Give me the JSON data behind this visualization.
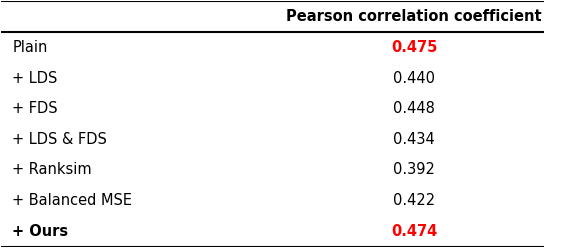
{
  "header": [
    "",
    "Pearson correlation coefficient"
  ],
  "rows": [
    [
      "Plain",
      "0.475"
    ],
    [
      "+ LDS",
      "0.440"
    ],
    [
      "+ FDS",
      "0.448"
    ],
    [
      "+ LDS & FDS",
      "0.434"
    ],
    [
      "+ Ranksim",
      "0.392"
    ],
    [
      "+ Balanced MSE",
      "0.422"
    ],
    [
      "+ Ours",
      "0.474"
    ]
  ],
  "red_rows": [
    0,
    6
  ],
  "bold_method_rows": [
    6
  ],
  "bg_color": "#ffffff",
  "text_color": "#000000",
  "red_color": "#ff0000",
  "col_split": 0.52,
  "figsize": [
    5.68,
    2.48
  ],
  "dpi": 100,
  "fontsize": 10.5
}
